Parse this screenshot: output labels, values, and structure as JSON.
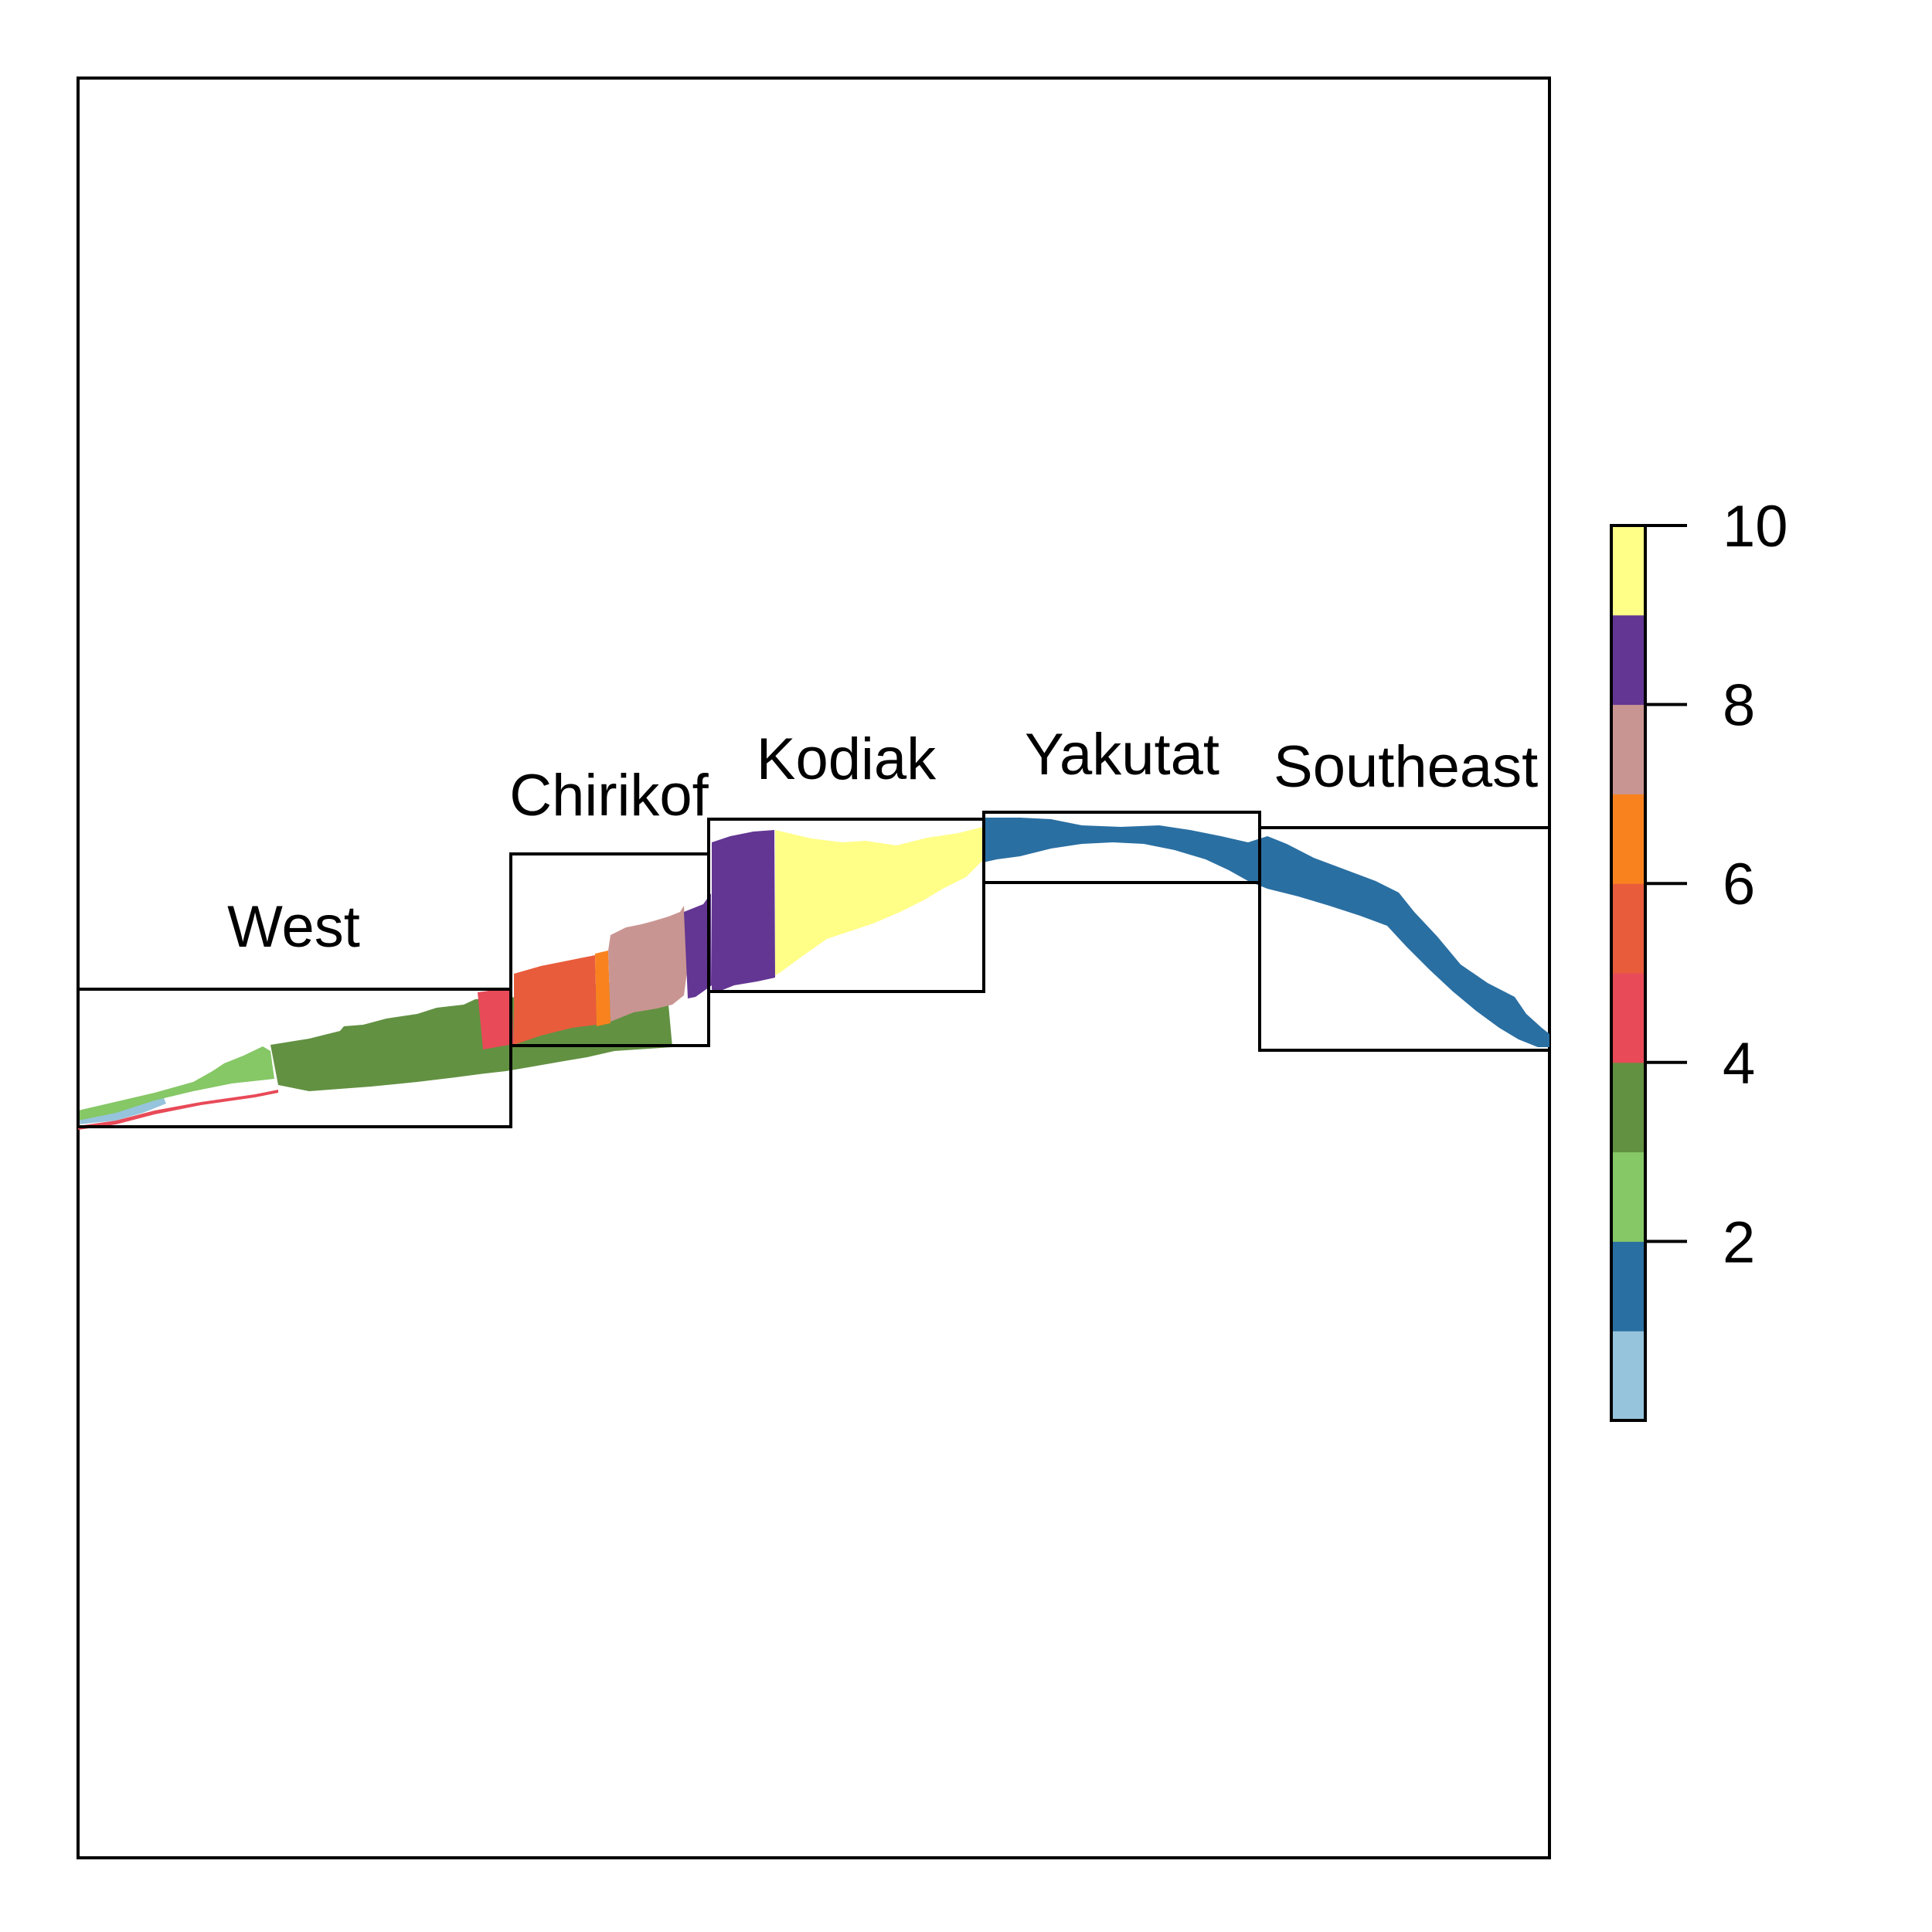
{
  "map": {
    "regions": [
      {
        "id": "west",
        "label": "West"
      },
      {
        "id": "chirikof",
        "label": "Chirikof"
      },
      {
        "id": "kodiak",
        "label": "Kodiak"
      },
      {
        "id": "yakutat",
        "label": "Yakutat"
      },
      {
        "id": "southeast",
        "label": "Southeast"
      }
    ]
  },
  "legend": {
    "ticks": [
      "2",
      "4",
      "6",
      "8",
      "10"
    ],
    "tick_values": [
      2,
      4,
      6,
      8,
      10
    ],
    "range": [
      1,
      10
    ],
    "colors": [
      "#a6cee3",
      "#1f78b4",
      "#b2df8a",
      "#33a02c",
      "#e31a1c",
      "#ff7f00",
      "#fdbf6f",
      "#cab2d6",
      "#6a3d9a",
      "#ffff99"
    ],
    "bins": [
      {
        "value": 1,
        "color": "#96c4dc"
      },
      {
        "value": 2,
        "color": "#2a6fa2"
      },
      {
        "value": 3,
        "color": "#86c766"
      },
      {
        "value": 4,
        "color": "#629142"
      },
      {
        "value": 5,
        "color": "#e84a58"
      },
      {
        "value": 6,
        "color": "#e85c3c"
      },
      {
        "value": 7,
        "color": "#f9821f"
      },
      {
        "value": 8,
        "color": "#c99592"
      },
      {
        "value": 9,
        "color": "#633693"
      },
      {
        "value": 10,
        "color": "#ffff88"
      }
    ]
  }
}
